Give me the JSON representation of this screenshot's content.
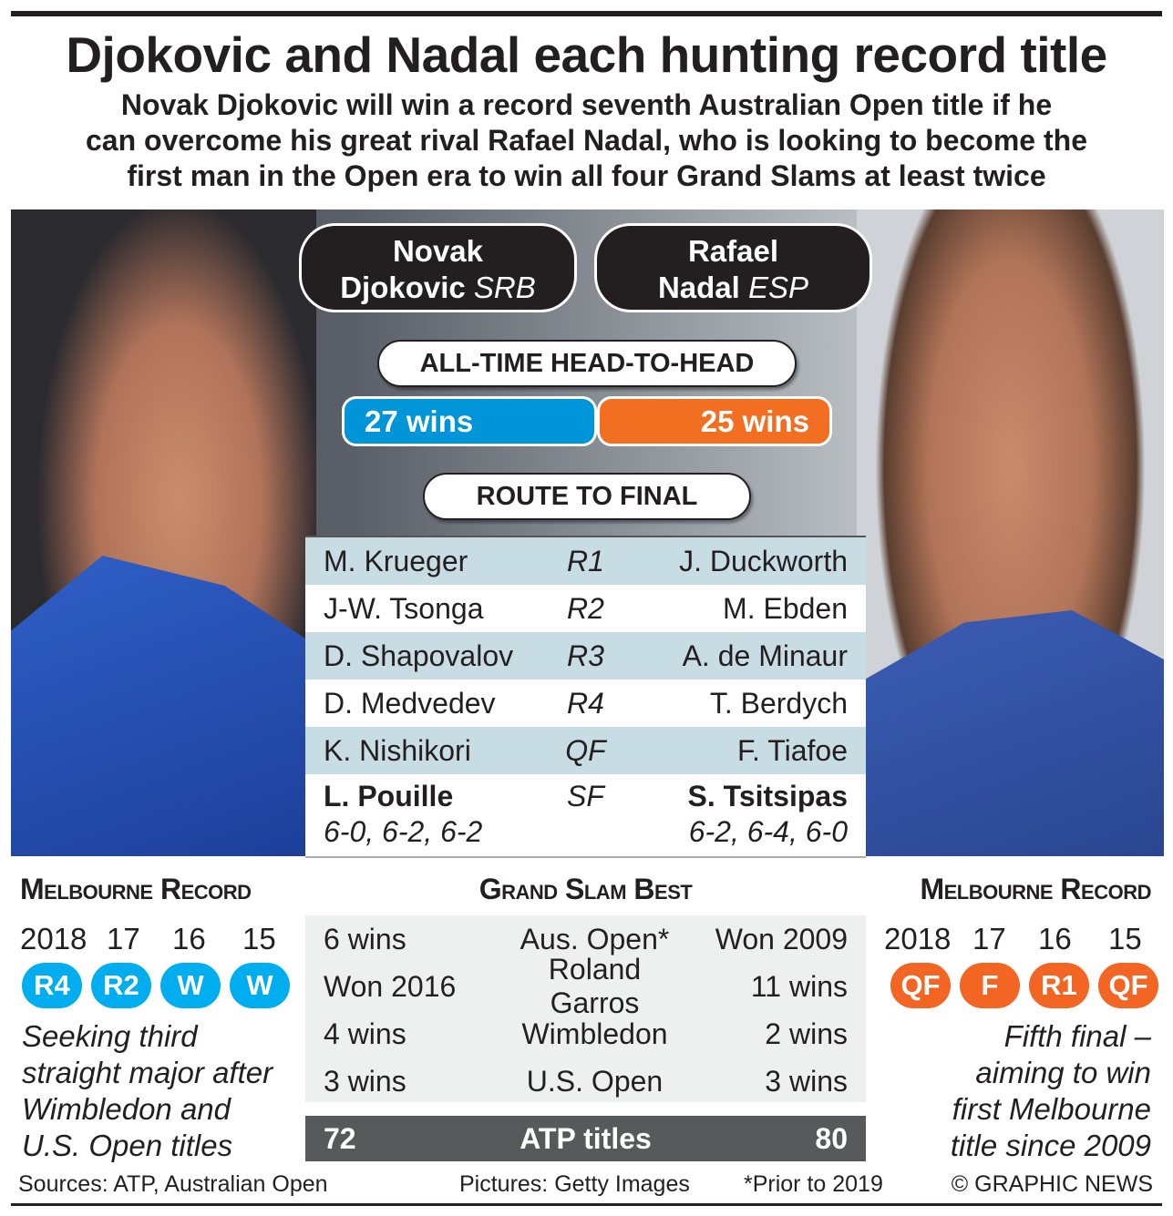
{
  "title": "Djokovic and Nadal each hunting record title",
  "subtitle": [
    "Novak Djokovic will win a record seventh Australian Open title if he",
    "can overcome his great rival Rafael Nadal, who is looking to become the",
    "first man in the Open era to win all four Grand Slams at least twice"
  ],
  "players": {
    "left": {
      "first": "Novak",
      "last": "Djokovic",
      "country": "SRB"
    },
    "right": {
      "first": "Rafael",
      "last": "Nadal",
      "country": "ESP"
    }
  },
  "head_to_head": {
    "label": "ALL-TIME HEAD-TO-HEAD",
    "left": "27 wins",
    "right": "25 wins",
    "left_color": "#0095d9",
    "right_color": "#f26f21"
  },
  "route": {
    "label": "ROUTE TO FINAL",
    "rows": [
      {
        "left": "M. Krueger",
        "round": "R1",
        "right": "J. Duckworth"
      },
      {
        "left": "J-W. Tsonga",
        "round": "R2",
        "right": "M. Ebden"
      },
      {
        "left": "D. Shapovalov",
        "round": "R3",
        "right": "A. de Minaur"
      },
      {
        "left": "D. Medvedev",
        "round": "R4",
        "right": "T. Berdych"
      },
      {
        "left": "K. Nishikori",
        "round": "QF",
        "right": "F. Tiafoe"
      },
      {
        "left": "L. Pouille",
        "round": "SF",
        "right": "S. Tsitsipas",
        "left_score": "6-0, 6-2, 6-2",
        "right_score": "6-2, 6-4, 6-0"
      }
    ]
  },
  "melbourne_left": {
    "header": "Melbourne Record",
    "years": [
      "2018",
      "17",
      "16",
      "15"
    ],
    "results": [
      "R4",
      "R2",
      "W",
      "W"
    ],
    "color": "#00aeef",
    "note": [
      "Seeking third",
      "straight major after",
      "Wimbledon and",
      "U.S. Open titles"
    ]
  },
  "melbourne_right": {
    "header": "Melbourne Record",
    "years": [
      "2018",
      "17",
      "16",
      "15"
    ],
    "results": [
      "QF",
      "F",
      "R1",
      "QF"
    ],
    "color": "#f26522",
    "note": [
      "Fifth final –",
      "aiming to win",
      "first Melbourne",
      "title since 2009"
    ]
  },
  "grand_slam": {
    "header": "Grand Slam Best",
    "rows": [
      {
        "left": "6 wins",
        "event": "Aus. Open*",
        "right": "Won 2009"
      },
      {
        "left": "Won 2016",
        "event": "Roland Garros",
        "right": "11 wins"
      },
      {
        "left": "4 wins",
        "event": "Wimbledon",
        "right": "2 wins"
      },
      {
        "left": "3 wins",
        "event": "U.S. Open",
        "right": "3 wins"
      }
    ],
    "atp": {
      "left": "72",
      "label": "ATP titles",
      "right": "80"
    }
  },
  "footer": {
    "sources": "Sources: ATP, Australian Open",
    "pictures": "Pictures: Getty Images",
    "note": "*Prior to 2019",
    "credit": "© GRAPHIC NEWS"
  }
}
